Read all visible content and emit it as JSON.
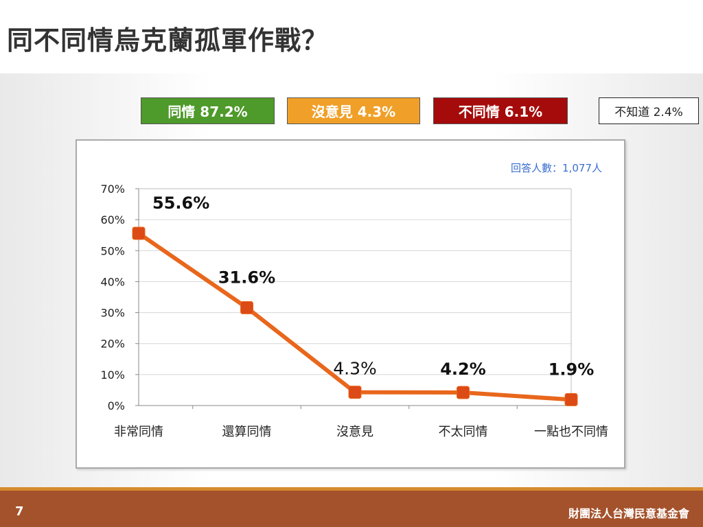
{
  "title": "同不同情烏克蘭孤軍作戰？",
  "summary_boxes": [
    {
      "label": "同情 87.2%",
      "color": "#4e9a2a"
    },
    {
      "label": "沒意見 4.3%",
      "color": "#f0a028"
    },
    {
      "label": "不同情 6.1%",
      "color": "#a50b0b"
    },
    {
      "label": "不知道 2.4%",
      "color": "#ffffff"
    }
  ],
  "chart_data": {
    "type": "line",
    "title": "",
    "note": "回答人數：1,077人",
    "categories": [
      "非常同情",
      "還算同情",
      "沒意見",
      "不太同情",
      "一點也不同情"
    ],
    "values": [
      55.6,
      31.6,
      4.3,
      4.2,
      1.9
    ],
    "data_labels": [
      "55.6%",
      "31.6%",
      "4.3%",
      "4.2%",
      "1.9%"
    ],
    "y_ticks": [
      "0%",
      "10%",
      "20%",
      "30%",
      "40%",
      "50%",
      "60%",
      "70%"
    ],
    "ylim": [
      0,
      70
    ],
    "xlabel": "",
    "ylabel": "",
    "grid": true,
    "legend": "none",
    "line_color": "#e8671c",
    "marker_color": "#dc4a16"
  },
  "footer": {
    "page_number": "7",
    "organization": "財團法人台灣民意基金會"
  }
}
